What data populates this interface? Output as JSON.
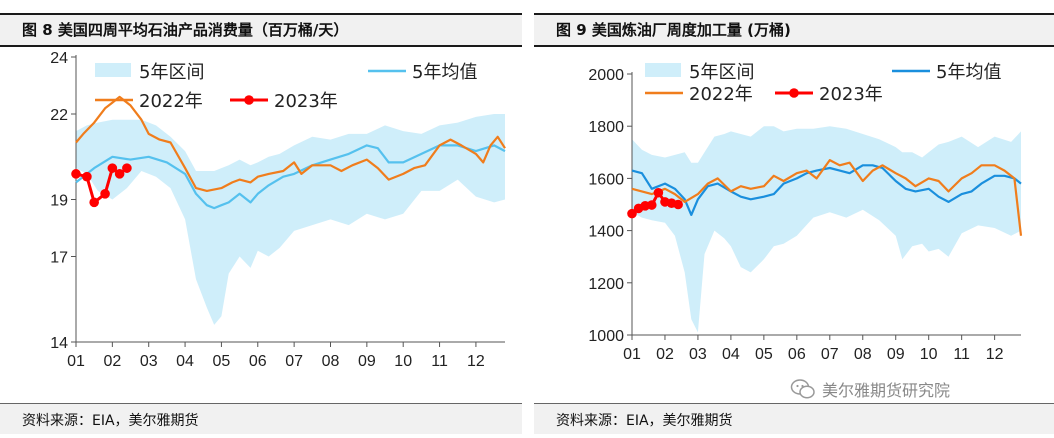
{
  "watermark": {
    "text": "美尔雅期货研究院"
  },
  "charts": [
    {
      "title": "图 8  美国四周平均石油产品消费量（百万桶/天）",
      "source": "资料来源：EIA，美尔雅期货",
      "chart_data": {
        "type": "line",
        "xlabel": "",
        "ylabel": "",
        "x_ticks": [
          "01",
          "02",
          "03",
          "04",
          "05",
          "06",
          "07",
          "08",
          "09",
          "10",
          "11",
          "12"
        ],
        "x_range": [
          1,
          12.8
        ],
        "y_ticks": [
          14,
          17,
          19,
          22,
          24
        ],
        "ylim": [
          14,
          24
        ],
        "legend_position": "top",
        "band": {
          "name": "5年区间",
          "x": [
            1,
            1.3,
            1.6,
            2,
            2.4,
            2.8,
            3.2,
            3.6,
            4,
            4.3,
            4.6,
            4.8,
            5,
            5.2,
            5.5,
            5.8,
            6,
            6.3,
            6.6,
            7,
            7.5,
            8,
            8.5,
            9,
            9.5,
            10,
            10.5,
            11,
            11.5,
            12,
            12.5,
            12.8
          ],
          "low": [
            20.1,
            19.9,
            19.3,
            19.0,
            19.4,
            20.0,
            19.8,
            19.4,
            18.3,
            16.2,
            15.2,
            14.6,
            14.9,
            16.4,
            17.0,
            16.6,
            17.2,
            17.0,
            17.3,
            17.9,
            18.1,
            18.3,
            18.1,
            18.5,
            18.3,
            18.5,
            19.3,
            19.3,
            19.7,
            19.1,
            18.9,
            19.0
          ],
          "high": [
            21.4,
            21.6,
            21.7,
            21.8,
            21.8,
            21.8,
            21.6,
            21.2,
            20.7,
            20.0,
            20.0,
            20.0,
            20.1,
            20.2,
            20.4,
            20.2,
            20.3,
            20.5,
            20.6,
            20.9,
            21.2,
            21.1,
            21.3,
            21.3,
            21.6,
            21.4,
            21.3,
            21.6,
            21.7,
            21.9,
            22.0,
            22.0
          ]
        },
        "series": [
          {
            "name": "5年均值",
            "x": [
              1,
              1.5,
              2,
              2.5,
              3,
              3.5,
              4,
              4.3,
              4.6,
              4.8,
              5,
              5.2,
              5.5,
              5.8,
              6,
              6.3,
              6.7,
              7,
              7.5,
              8,
              8.5,
              9,
              9.3,
              9.6,
              10,
              10.5,
              11,
              11.5,
              12,
              12.5,
              12.8
            ],
            "y": [
              19.6,
              20.1,
              20.5,
              20.4,
              20.5,
              20.3,
              19.9,
              19.2,
              18.8,
              18.7,
              18.8,
              18.9,
              19.2,
              18.9,
              19.2,
              19.5,
              19.8,
              19.9,
              20.2,
              20.4,
              20.6,
              20.9,
              20.8,
              20.3,
              20.3,
              20.6,
              20.9,
              20.9,
              20.7,
              20.9,
              20.7
            ]
          },
          {
            "name": "2022年",
            "x": [
              1,
              1.2,
              1.5,
              1.8,
              2,
              2.2,
              2.5,
              2.8,
              3,
              3.3,
              3.6,
              4,
              4.3,
              4.6,
              5,
              5.3,
              5.5,
              5.8,
              6,
              6.3,
              6.7,
              7,
              7.2,
              7.5,
              8,
              8.3,
              8.6,
              9,
              9.3,
              9.6,
              10,
              10.3,
              10.6,
              11,
              11.3,
              11.6,
              12,
              12.2,
              12.4,
              12.6,
              12.8
            ],
            "y": [
              21.0,
              21.3,
              21.7,
              22.2,
              22.4,
              22.6,
              22.3,
              21.8,
              21.3,
              21.1,
              21.0,
              20.1,
              19.4,
              19.3,
              19.4,
              19.6,
              19.7,
              19.6,
              19.8,
              19.9,
              20.0,
              20.3,
              19.9,
              20.2,
              20.2,
              20.0,
              20.2,
              20.4,
              20.1,
              19.7,
              19.9,
              20.1,
              20.2,
              20.9,
              21.1,
              20.9,
              20.6,
              20.3,
              20.9,
              21.2,
              20.8
            ]
          },
          {
            "name": "2023年",
            "x": [
              1,
              1.3,
              1.5,
              1.8,
              2,
              2.2,
              2.4
            ],
            "y": [
              19.9,
              19.8,
              18.9,
              19.2,
              20.1,
              19.9,
              20.1
            ],
            "markers": true
          }
        ]
      }
    },
    {
      "title": "图 9  美国炼油厂周度加工量 (万桶)",
      "source": "资料来源：EIA，美尔雅期货",
      "chart_data": {
        "type": "line",
        "xlabel": "",
        "ylabel": "",
        "x_ticks": [
          "01",
          "02",
          "03",
          "04",
          "05",
          "06",
          "07",
          "08",
          "09",
          "10",
          "11",
          "12"
        ],
        "x_range": [
          1,
          12.8
        ],
        "y_ticks": [
          1000,
          1200,
          1400,
          1600,
          1800,
          2000
        ],
        "ylim": [
          1000,
          2000
        ],
        "legend_position": "top",
        "band": {
          "name": "5年区间",
          "x": [
            1,
            1.3,
            1.6,
            2,
            2.3,
            2.6,
            2.8,
            3,
            3.2,
            3.5,
            3.8,
            4,
            4.3,
            4.6,
            5,
            5.3,
            5.6,
            6,
            6.5,
            7,
            7.5,
            8,
            8.5,
            9,
            9.2,
            9.5,
            9.8,
            10,
            10.3,
            10.6,
            11,
            11.5,
            12,
            12.5,
            12.8
          ],
          "low": [
            1470,
            1450,
            1440,
            1430,
            1380,
            1240,
            1060,
            1010,
            1310,
            1400,
            1370,
            1340,
            1260,
            1240,
            1290,
            1340,
            1350,
            1380,
            1450,
            1470,
            1450,
            1480,
            1440,
            1380,
            1290,
            1340,
            1350,
            1320,
            1330,
            1300,
            1390,
            1420,
            1410,
            1380,
            1400
          ],
          "high": [
            1750,
            1710,
            1690,
            1680,
            1690,
            1700,
            1660,
            1660,
            1700,
            1760,
            1770,
            1780,
            1770,
            1760,
            1800,
            1800,
            1780,
            1790,
            1790,
            1800,
            1790,
            1770,
            1750,
            1720,
            1700,
            1700,
            1680,
            1700,
            1730,
            1740,
            1760,
            1720,
            1760,
            1740,
            1780
          ]
        },
        "series": [
          {
            "name": "5年均值",
            "x": [
              1,
              1.3,
              1.6,
              2,
              2.3,
              2.6,
              2.8,
              3,
              3.3,
              3.6,
              4,
              4.3,
              4.6,
              5,
              5.3,
              5.6,
              6,
              6.3,
              6.6,
              7,
              7.3,
              7.6,
              8,
              8.3,
              8.6,
              9,
              9.3,
              9.6,
              10,
              10.3,
              10.6,
              11,
              11.3,
              11.6,
              12,
              12.3,
              12.6,
              12.8
            ],
            "y": [
              1630,
              1620,
              1560,
              1580,
              1560,
              1520,
              1460,
              1520,
              1570,
              1580,
              1550,
              1530,
              1520,
              1530,
              1540,
              1580,
              1600,
              1620,
              1630,
              1640,
              1630,
              1620,
              1650,
              1650,
              1640,
              1590,
              1560,
              1550,
              1560,
              1530,
              1510,
              1540,
              1550,
              1580,
              1610,
              1610,
              1600,
              1580
            ]
          },
          {
            "name": "2022年",
            "x": [
              1,
              1.3,
              1.6,
              2,
              2.3,
              2.6,
              3,
              3.3,
              3.6,
              4,
              4.3,
              4.6,
              5,
              5.3,
              5.6,
              6,
              6.3,
              6.6,
              7,
              7.3,
              7.6,
              8,
              8.3,
              8.6,
              9,
              9.3,
              9.6,
              10,
              10.3,
              10.6,
              11,
              11.3,
              11.6,
              12,
              12.3,
              12.6,
              12.8
            ],
            "y": [
              1560,
              1550,
              1540,
              1560,
              1540,
              1510,
              1540,
              1580,
              1600,
              1550,
              1570,
              1560,
              1570,
              1610,
              1590,
              1620,
              1630,
              1600,
              1670,
              1650,
              1660,
              1590,
              1630,
              1650,
              1620,
              1600,
              1570,
              1600,
              1590,
              1550,
              1600,
              1620,
              1650,
              1650,
              1630,
              1600,
              1380
            ]
          },
          {
            "name": "2023年",
            "x": [
              1,
              1.2,
              1.4,
              1.6,
              1.8,
              2,
              2.2,
              2.4
            ],
            "y": [
              1465,
              1485,
              1495,
              1498,
              1545,
              1510,
              1505,
              1500
            ],
            "markers": true
          }
        ]
      }
    }
  ]
}
